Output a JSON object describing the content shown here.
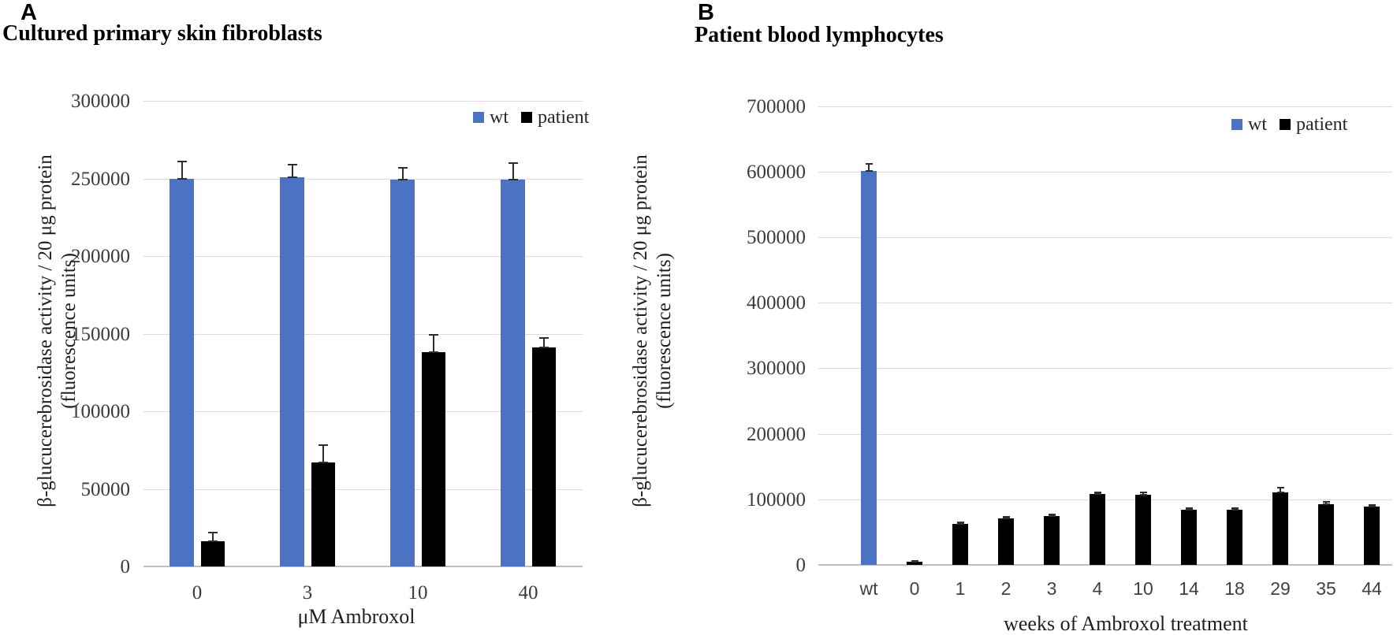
{
  "panels": [
    {
      "letter": "A",
      "title": "Cultured primary skin fibroblasts"
    },
    {
      "letter": "B",
      "title": "Patient blood lymphocytes"
    }
  ],
  "colors": {
    "wt_bar": "#4c72c4",
    "patient_bar": "#000000",
    "gridline": "#dadada",
    "baseline": "#bfbfbf",
    "error_bar": "#2e2e2e"
  },
  "chart_data": [
    {
      "type": "bar",
      "title": "Cultured primary skin fibroblasts",
      "categories": [
        "0",
        "3",
        "10",
        "40"
      ],
      "xlabel": "μM Ambroxol",
      "ylabel": "β-glucucerebrosidase activity / 20 μg protein",
      "ylabel_line2": "(fluorescence units)",
      "ylim": [
        0,
        300000
      ],
      "ytick_step": 50000,
      "grid": true,
      "legend_position": "top-right",
      "legend": [
        "wt",
        "patient"
      ],
      "series": [
        {
          "name": "wt",
          "color": "#4c72c4",
          "values": [
            250000,
            251000,
            249000,
            249000
          ],
          "errors": [
            11000,
            8000,
            8000,
            11000
          ]
        },
        {
          "name": "patient",
          "color": "#000000",
          "values": [
            16000,
            67000,
            138000,
            141000
          ],
          "errors": [
            6000,
            11000,
            11000,
            6000
          ]
        }
      ]
    },
    {
      "type": "bar",
      "title": "Patient blood lymphocytes",
      "categories": [
        "wt",
        "0",
        "1",
        "2",
        "3",
        "4",
        "10",
        "14",
        "18",
        "29",
        "35",
        "44"
      ],
      "xlabel": "weeks of Ambroxol treatment",
      "ylabel": "β-glucucerebrosidase activity / 20 μg protein",
      "ylabel_line2": "(fluorescence units)",
      "ylim": [
        0,
        700000
      ],
      "ytick_step": 100000,
      "grid": true,
      "legend_position": "top-right",
      "legend": [
        "wt",
        "patient"
      ],
      "series": [
        {
          "name": "wt",
          "color": "#4c72c4",
          "values": [
            601000,
            null,
            null,
            null,
            null,
            null,
            null,
            null,
            null,
            null,
            null,
            null
          ],
          "errors": [
            11000,
            null,
            null,
            null,
            null,
            null,
            null,
            null,
            null,
            null,
            null,
            null
          ]
        },
        {
          "name": "patient",
          "color": "#000000",
          "values": [
            null,
            5000,
            62000,
            71000,
            74000,
            108000,
            107000,
            84000,
            84000,
            110000,
            93000,
            89000
          ],
          "errors": [
            null,
            1500,
            2500,
            2500,
            2500,
            2500,
            3000,
            2500,
            2500,
            8000,
            3000,
            2500
          ]
        }
      ]
    }
  ]
}
